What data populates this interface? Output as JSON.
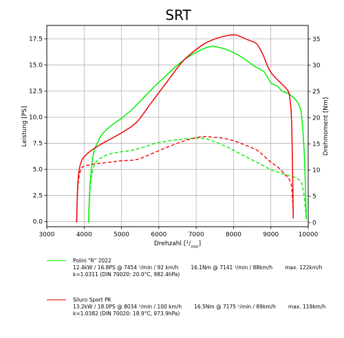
{
  "chart_data": {
    "type": "line",
    "title": "SRT",
    "xlabel": "Drehzahl  [1/min]",
    "ylabel_left": "Leistung  [PS]",
    "ylabel_right": "Drehmoment  [Nm]",
    "xlim": [
      3000,
      10000
    ],
    "ylim_left": [
      -0.5,
      18.8
    ],
    "ylim_right": [
      -0.8,
      37.6
    ],
    "x_ticks": [
      "3000",
      "4000",
      "5000",
      "6000",
      "7000",
      "8000",
      "9000",
      "10000"
    ],
    "y_left_ticks": [
      "0.0",
      "2.5",
      "5.0",
      "7.5",
      "10.0",
      "12.5",
      "15.0",
      "17.5"
    ],
    "y_right_ticks": [
      "0",
      "5",
      "10",
      "15",
      "20",
      "25",
      "30",
      "35"
    ],
    "grid": true,
    "series": [
      {
        "name": "Polini \"R\" 2022",
        "color": "#00ee00",
        "power": {
          "axis": "left",
          "x": [
            4120,
            4140,
            4180,
            4250,
            4350,
            4450,
            4600,
            4800,
            5000,
            5300,
            5600,
            5900,
            6200,
            6500,
            6800,
            7100,
            7300,
            7454,
            7600,
            7800,
            8000,
            8200,
            8400,
            8600,
            8800,
            8900,
            9000,
            9100,
            9200,
            9300,
            9450,
            9600,
            9700,
            9800,
            9850,
            9900,
            9950
          ],
          "y": [
            0.0,
            2.2,
            4.5,
            6.5,
            7.5,
            8.2,
            8.8,
            9.4,
            9.9,
            10.8,
            11.9,
            13.0,
            14.0,
            15.0,
            15.8,
            16.4,
            16.7,
            16.8,
            16.7,
            16.5,
            16.2,
            15.8,
            15.3,
            14.8,
            14.4,
            13.9,
            13.3,
            13.1,
            12.9,
            12.5,
            12.3,
            11.9,
            11.5,
            10.7,
            9.0,
            6.0,
            0.2
          ]
        },
        "torque": {
          "axis": "right",
          "x": [
            4120,
            4140,
            4180,
            4250,
            4350,
            4500,
            4700,
            5000,
            5300,
            5600,
            5900,
            6200,
            6500,
            6800,
            7000,
            7141,
            7300,
            7500,
            7800,
            8100,
            8400,
            8700,
            9000,
            9200,
            9400,
            9600,
            9700,
            9800,
            9850,
            9900,
            9950
          ],
          "y": [
            0.0,
            4.0,
            8.0,
            10.5,
            11.8,
            12.5,
            13.1,
            13.5,
            13.8,
            14.4,
            15.1,
            15.5,
            15.8,
            16.0,
            16.1,
            16.1,
            15.9,
            15.4,
            14.5,
            13.4,
            12.3,
            11.2,
            10.1,
            9.6,
            9.1,
            8.7,
            8.4,
            7.8,
            6.8,
            4.5,
            0.5
          ]
        }
      },
      {
        "name": "Siluro Sport PK",
        "color": "#ee0000",
        "power": {
          "axis": "left",
          "x": [
            3800,
            3810,
            3830,
            3870,
            3930,
            4000,
            4150,
            4400,
            4700,
            5000,
            5400,
            5800,
            6200,
            6600,
            6900,
            7200,
            7500,
            7800,
            8034,
            8200,
            8400,
            8600,
            8700,
            8800,
            8900,
            9000,
            9200,
            9400,
            9500,
            9560,
            9600
          ],
          "y": [
            0.0,
            1.5,
            3.5,
            5.0,
            5.8,
            6.2,
            6.7,
            7.3,
            7.9,
            8.5,
            9.5,
            11.4,
            13.3,
            15.2,
            16.2,
            17.0,
            17.5,
            17.8,
            17.9,
            17.7,
            17.4,
            17.1,
            16.6,
            15.9,
            15.0,
            14.3,
            13.5,
            12.8,
            12.0,
            9.0,
            0.3
          ]
        },
        "torque": {
          "axis": "right",
          "x": [
            3800,
            3810,
            3830,
            3870,
            3930,
            4000,
            4150,
            4400,
            4700,
            5000,
            5400,
            5800,
            6200,
            6600,
            6900,
            7175,
            7400,
            7700,
            8000,
            8300,
            8600,
            8800,
            9000,
            9200,
            9400,
            9500,
            9560,
            9600
          ],
          "y": [
            0.0,
            3.0,
            6.5,
            9.0,
            10.3,
            10.8,
            11.0,
            11.3,
            11.5,
            11.8,
            12.0,
            13.1,
            14.3,
            15.4,
            16.0,
            16.4,
            16.3,
            16.1,
            15.6,
            14.8,
            13.9,
            12.8,
            11.5,
            10.5,
            9.0,
            8.1,
            6.5,
            1.5
          ]
        }
      }
    ]
  },
  "legend": [
    {
      "name": "Polini \"R\" 2022",
      "color": "#00ee00",
      "line2_a": "12.4kW / 16.8PS @ 7454 ¹/min / 92 km/h",
      "line2_b": "16.1Nm @ 7141 ¹/min / 88km/h",
      "line2_c": "max. 122km/h",
      "line3": "k=1.0311 (DIN 70020: 20.0°C, 982.4hPa)"
    },
    {
      "name": "Siluro Sport PK",
      "color": "#ee0000",
      "line2_a": "13.2kW / 18.0PS @ 8034 ¹/min / 100 km/h",
      "line2_b": "16.5Nm @ 7175 ¹/min / 89km/h",
      "line2_c": "max. 119km/h",
      "line3": "k=1.0382 (DIN 70020: 18.9°C, 973.9hPa)"
    }
  ]
}
